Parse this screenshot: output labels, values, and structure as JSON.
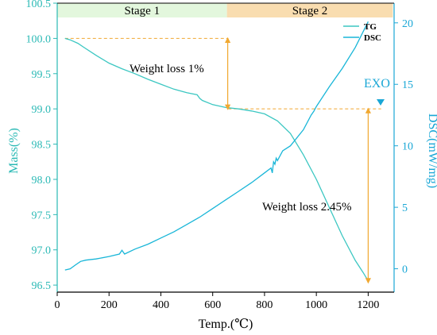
{
  "colors": {
    "tg": "#3cc7c2",
    "dsc": "#19b6d8",
    "right_axis_text": "#1aa7d6",
    "left_axis_text": "#2ab9b5",
    "stage1_band": "#e3f7dd",
    "stage2_band": "#f9ddb0",
    "arrow": "#f1a830",
    "dashed": "#f1a830",
    "exo_arrow": "#1aa7d6",
    "axis": "#000000"
  },
  "chart_data": {
    "type": "line",
    "xlabel": "Temp.(℃)",
    "ylabel_left": "Mass(%)",
    "ylabel_right": "DSC(mW/mg)",
    "xlim": [
      0,
      1300
    ],
    "ylim_left": [
      96.4,
      100.5
    ],
    "ylim_right": [
      -1.9,
      21.6
    ],
    "x_ticks": [
      0,
      200,
      400,
      600,
      800,
      1000,
      1200
    ],
    "y_left_ticks": [
      96.5,
      97.0,
      97.5,
      98.0,
      98.5,
      99.0,
      99.5,
      100.0,
      100.5
    ],
    "y_right_ticks": [
      0,
      5,
      10,
      15,
      20
    ],
    "stages": [
      {
        "label": "Stage 1",
        "x_range": [
          0,
          655
        ]
      },
      {
        "label": "Stage 2",
        "x_range": [
          655,
          1295
        ]
      }
    ],
    "legend": {
      "position": "top-right",
      "entries": [
        "TG",
        "DSC"
      ]
    },
    "annotations": {
      "weight_loss_1": "Weight loss  1%",
      "weight_loss_2": "Weight loss  2.45%",
      "exo": "EXO"
    },
    "series": [
      {
        "name": "TG",
        "axis": "left",
        "x": [
          30,
          50,
          80,
          100,
          150,
          200,
          250,
          300,
          350,
          400,
          450,
          500,
          540,
          550,
          560,
          600,
          650,
          700,
          750,
          800,
          850,
          900,
          950,
          1000,
          1050,
          1100,
          1150,
          1180,
          1200
        ],
        "y": [
          100.0,
          99.98,
          99.93,
          99.88,
          99.76,
          99.65,
          99.57,
          99.5,
          99.42,
          99.35,
          99.28,
          99.23,
          99.2,
          99.15,
          99.12,
          99.06,
          99.02,
          99.0,
          98.97,
          98.93,
          98.83,
          98.65,
          98.35,
          98.0,
          97.6,
          97.2,
          96.85,
          96.68,
          96.56
        ]
      },
      {
        "name": "DSC",
        "axis": "right",
        "x": [
          30,
          50,
          70,
          90,
          110,
          150,
          200,
          240,
          250,
          260,
          300,
          350,
          400,
          450,
          500,
          550,
          600,
          650,
          700,
          750,
          800,
          825,
          830,
          835,
          840,
          845,
          850,
          870,
          900,
          950,
          980,
          990,
          1000,
          1050,
          1100,
          1150,
          1200
        ],
        "y": [
          -0.1,
          0.0,
          0.3,
          0.6,
          0.7,
          0.8,
          1.0,
          1.2,
          1.5,
          1.2,
          1.6,
          2.0,
          2.5,
          3.0,
          3.6,
          4.2,
          4.9,
          5.6,
          6.3,
          7.0,
          7.8,
          8.2,
          7.8,
          8.7,
          8.5,
          9.0,
          8.8,
          9.6,
          10.0,
          11.3,
          12.5,
          12.8,
          13.2,
          14.8,
          16.3,
          18.0,
          20.1
        ]
      }
    ]
  }
}
